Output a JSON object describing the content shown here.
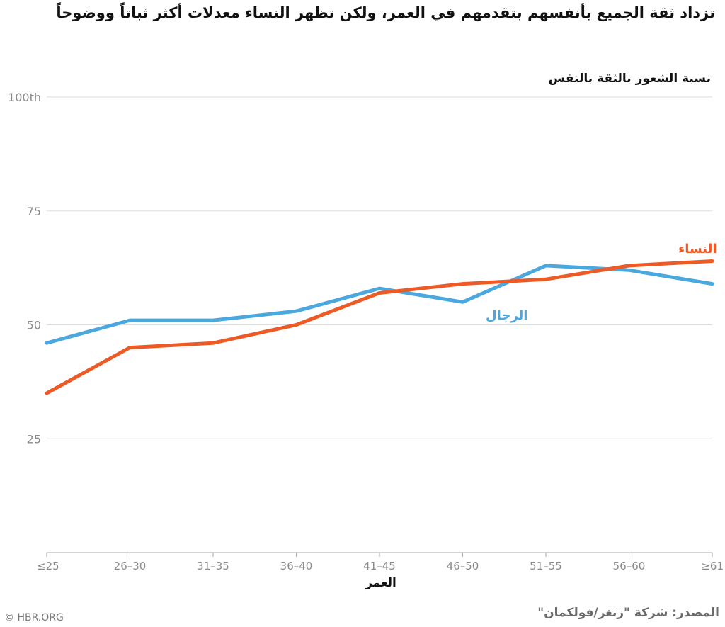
{
  "header": {
    "title": "تزداد ثقة الجميع بأنفسهم بتقدمهم في العمر، ولكن تظهر النساء معدلات أكثر ثباتاً ووضوحاً"
  },
  "footer": {
    "source": "المصدر: شركة \"زنغر/فولكمان\"",
    "credit": "© HBR.ORG"
  },
  "colors": {
    "men": "#4aa8de",
    "women": "#ee5a26",
    "grid": "#dddddd",
    "axis": "#aaaaaa"
  },
  "chart_data": {
    "type": "line",
    "title": "تزداد ثقة الجميع بأنفسهم بتقدمهم في العمر، ولكن تظهر النساء معدلات أكثر ثباتاً ووضوحاً",
    "ylabel": "نسبة الشعور بالثقة بالنفس",
    "xlabel": "العمر",
    "categories": [
      "≤25",
      "26–30",
      "31–35",
      "36–40",
      "41–45",
      "46–50",
      "51–55",
      "56–60",
      "≥61"
    ],
    "ylim": [
      0,
      100
    ],
    "yticks": [
      {
        "value": 25,
        "label": "25"
      },
      {
        "value": 50,
        "label": "50"
      },
      {
        "value": 75,
        "label": "75"
      },
      {
        "value": 100,
        "label": "100th"
      }
    ],
    "grid": true,
    "legend": "inline labels",
    "series": [
      {
        "key": "men",
        "name": "الرجال",
        "values": [
          46,
          51,
          51,
          53,
          58,
          55,
          63,
          62,
          59
        ]
      },
      {
        "key": "women",
        "name": "النساء",
        "values": [
          35,
          45,
          46,
          50,
          57,
          59,
          60,
          63,
          64
        ]
      }
    ]
  }
}
